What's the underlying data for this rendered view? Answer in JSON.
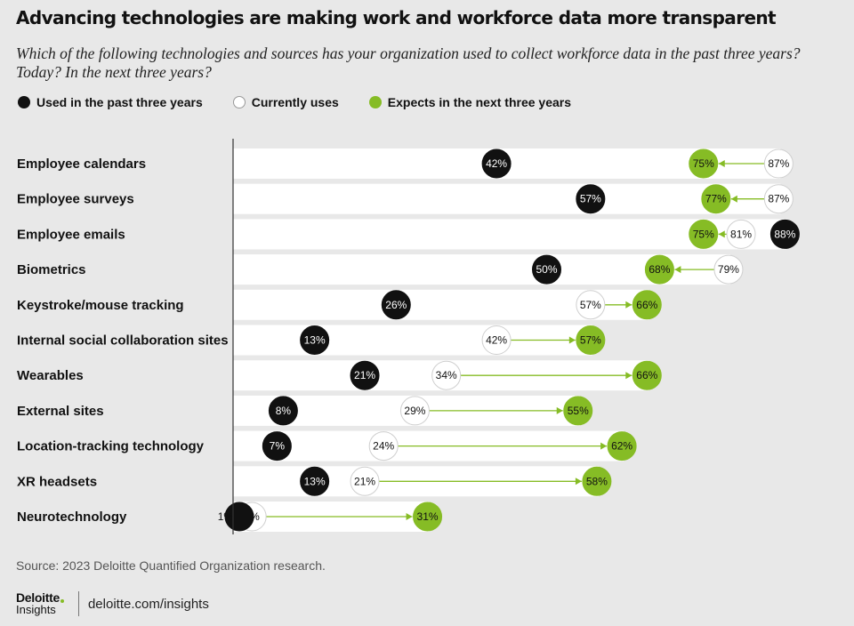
{
  "title": "Advancing technologies are making work and workforce data more transparent",
  "subtitle": "Which of the following technologies and sources has your organization used to collect workforce data in the past three years? Today? In the next three years?",
  "colors": {
    "past": "#111111",
    "current": "#ffffff",
    "future": "#86bc25",
    "bar": "#ffffff",
    "background": "#e8e8e8"
  },
  "chart_data": {
    "type": "dot-range",
    "title": "Advancing technologies are making work and workforce data more transparent",
    "xlim": [
      0,
      100
    ],
    "unit": "%",
    "series": [
      {
        "name": "Used in the past three years",
        "key": "past",
        "color": "#111111"
      },
      {
        "name": "Currently uses",
        "key": "current",
        "color": "#ffffff"
      },
      {
        "name": "Expects in the next three years",
        "key": "future",
        "color": "#86bc25"
      }
    ],
    "categories": [
      "Employee calendars",
      "Employee surveys",
      "Employee emails",
      "Biometrics",
      "Keystroke/mouse tracking",
      "Internal social collaboration sites",
      "Wearables",
      "External sites",
      "Location-tracking technology",
      "XR headsets",
      "Neurotechnology"
    ],
    "rows": [
      {
        "label": "Employee calendars",
        "past": 42,
        "current": 87,
        "future": 75
      },
      {
        "label": "Employee surveys",
        "past": 57,
        "current": 87,
        "future": 77
      },
      {
        "label": "Employee emails",
        "past": 88,
        "current": 81,
        "future": 75
      },
      {
        "label": "Biometrics",
        "past": 50,
        "current": 79,
        "future": 68
      },
      {
        "label": "Keystroke/mouse tracking",
        "past": 26,
        "current": 57,
        "future": 66
      },
      {
        "label": "Internal social collaboration sites",
        "past": 13,
        "current": 42,
        "future": 57
      },
      {
        "label": "Wearables",
        "past": 21,
        "current": 34,
        "future": 66
      },
      {
        "label": "External sites",
        "past": 8,
        "current": 29,
        "future": 55
      },
      {
        "label": "Location-tracking technology",
        "past": 7,
        "current": 24,
        "future": 62
      },
      {
        "label": "XR headsets",
        "past": 13,
        "current": 21,
        "future": 58
      },
      {
        "label": "Neurotechnology",
        "past": 1,
        "current": 3,
        "future": 31
      }
    ]
  },
  "source": "Source: 2023 Deloitte Quantified Organization research.",
  "brand": {
    "logo_top": "Deloitte",
    "logo_sub": "Insights",
    "url": "deloitte.com/insights"
  }
}
